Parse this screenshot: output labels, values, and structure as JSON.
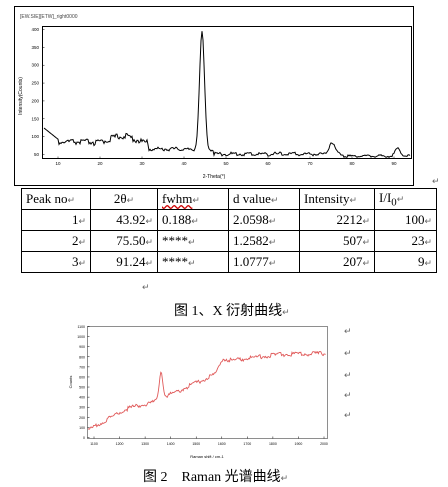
{
  "xrd_figure": {
    "file_label": "[EW.SIE][ETW]_right0000",
    "ylabel": "Intensity(Counts)",
    "xlabel": "2-Theta(°)",
    "y_ticks": [
      "400",
      "350",
      "300",
      "250",
      "200",
      "150",
      "100",
      "50"
    ],
    "x_ticks": [
      "10",
      "20",
      "30",
      "40",
      "50",
      "60",
      "70",
      "80",
      "90"
    ]
  },
  "peak_table": {
    "headers": [
      "Peak no",
      "2θ",
      "fwhm",
      "d value",
      "Intensity",
      "I/I"
    ],
    "header_sub": "0",
    "rows": [
      {
        "no": "1",
        "two_theta": "43.92",
        "fwhm": "0.188",
        "d": "2.0598",
        "intensity": "2212",
        "ratio": "100"
      },
      {
        "no": "2",
        "two_theta": "75.50",
        "fwhm": "****",
        "d": "1.2582",
        "intensity": "507",
        "ratio": "23"
      },
      {
        "no": "3",
        "two_theta": "91.24",
        "fwhm": "****",
        "d": "1.0777",
        "intensity": "207",
        "ratio": "9"
      }
    ]
  },
  "caption1": "图 1、X 衍射曲线",
  "raman_figure": {
    "ylabel": "Counts",
    "xlabel": "Raman shift / cm-1",
    "y_ticks": [
      "1100",
      "1000",
      "900",
      "800",
      "700",
      "600",
      "500",
      "400",
      "300",
      "200",
      "100",
      "0"
    ],
    "x_ticks": [
      "1100",
      "1200",
      "1300",
      "1400",
      "1500",
      "1600",
      "1700",
      "1800",
      "1900",
      "2000"
    ]
  },
  "caption2": "图 2　Raman 光谱曲线",
  "marks": {
    "paragraph": "↵"
  }
}
